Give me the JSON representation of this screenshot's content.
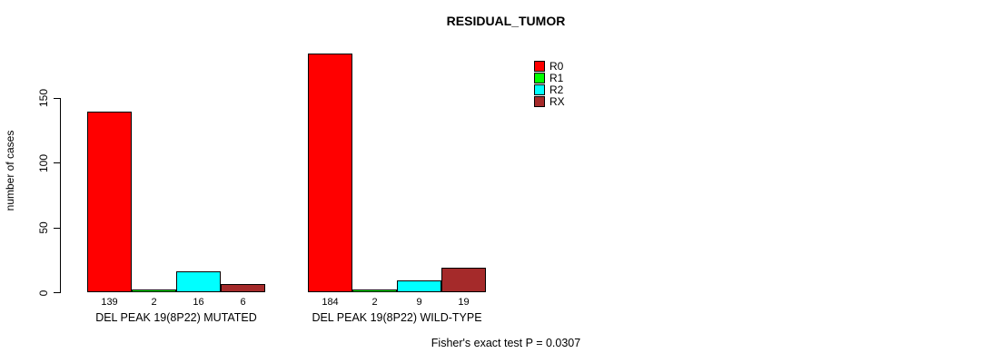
{
  "chart_data": {
    "type": "bar",
    "title": "RESIDUAL_TUMOR",
    "ylabel": "number of cases",
    "xlabel": "",
    "yticks": [
      0,
      50,
      100,
      150
    ],
    "ylim": [
      0,
      190
    ],
    "grid": false,
    "legend_position": "top-right",
    "categories": [
      "DEL PEAK 19(8P22) MUTATED",
      "DEL PEAK 19(8P22) WILD-TYPE"
    ],
    "series": [
      {
        "name": "R0",
        "color": "#FF0000",
        "values": [
          139,
          184
        ]
      },
      {
        "name": "R1",
        "color": "#00FF00",
        "values": [
          2,
          2
        ]
      },
      {
        "name": "R2",
        "color": "#00FFFF",
        "values": [
          16,
          9
        ]
      },
      {
        "name": "RX",
        "color": "#A52A2A",
        "values": [
          6,
          19
        ]
      }
    ],
    "bar_value_labels": [
      [
        139,
        2,
        16,
        6
      ],
      [
        184,
        2,
        9,
        19
      ]
    ],
    "annotation": "Fisher's exact test P = 0.0307"
  }
}
